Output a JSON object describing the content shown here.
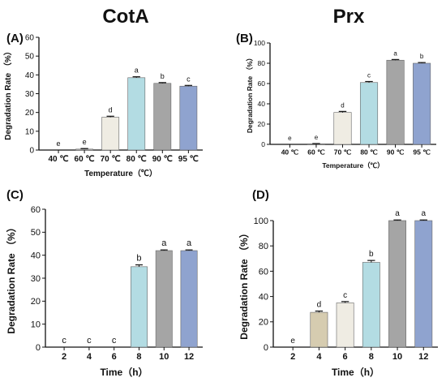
{
  "titles": {
    "left": "CotA",
    "right": "Prx"
  },
  "chart_data": [
    {
      "panel": "(A)",
      "type": "bar",
      "categories": [
        "40 ℃",
        "60 ℃",
        "70 ℃",
        "80 ℃",
        "90 ℃",
        "95 ℃"
      ],
      "values": [
        0,
        0.5,
        17.5,
        38.5,
        35.5,
        34
      ],
      "errors": [
        0,
        0.3,
        0.5,
        0.5,
        0.4,
        0.4
      ],
      "letters": [
        "e",
        "e",
        "d",
        "a",
        "b",
        "c"
      ],
      "colors": [
        "#ffffff",
        "#cccccc",
        "#efece3",
        "#b3dce3",
        "#a5a5a5",
        "#8fa3cf"
      ],
      "xlabel": "Temperature（℃）",
      "ylabel": "Degradation Rate （%）",
      "ylim": [
        0,
        60
      ],
      "yticks": [
        0,
        10,
        20,
        30,
        40,
        50,
        60
      ]
    },
    {
      "panel": "(B)",
      "type": "bar",
      "categories": [
        "40 ℃",
        "60 ℃",
        "70 ℃",
        "80 ℃",
        "90 ℃",
        "95 ℃"
      ],
      "values": [
        0,
        0.5,
        31.5,
        61,
        83,
        80
      ],
      "errors": [
        0,
        0.3,
        1,
        1,
        0.7,
        0.7
      ],
      "letters": [
        "e",
        "e",
        "d",
        "c",
        "a",
        "b"
      ],
      "colors": [
        "#ffffff",
        "#cccccc",
        "#efece3",
        "#b3dce3",
        "#a5a5a5",
        "#8fa3cf"
      ],
      "xlabel": "Temperature（℃）",
      "ylabel": "Degradation Rate （%）",
      "ylim": [
        0,
        100
      ],
      "yticks": [
        0,
        20,
        40,
        60,
        80,
        100
      ]
    },
    {
      "panel": "(C)",
      "type": "bar",
      "categories": [
        "2",
        "4",
        "6",
        "8",
        "10",
        "12"
      ],
      "values": [
        0,
        0,
        0,
        35,
        42,
        42
      ],
      "errors": [
        0,
        0,
        0,
        0.8,
        0.3,
        0.3
      ],
      "letters": [
        "c",
        "c",
        "c",
        "b",
        "a",
        "a"
      ],
      "colors": [
        "#ffffff",
        "#ffffff",
        "#ffffff",
        "#b3dce3",
        "#a5a5a5",
        "#8fa3cf"
      ],
      "xlabel": "Time（h）",
      "ylabel": "Degradation Rate （%）",
      "ylim": [
        0,
        60
      ],
      "yticks": [
        0,
        10,
        20,
        30,
        40,
        50,
        60
      ]
    },
    {
      "panel": "(D)",
      "type": "bar",
      "categories": [
        "2",
        "4",
        "6",
        "8",
        "10",
        "12"
      ],
      "values": [
        0,
        27.5,
        35,
        67,
        100,
        100
      ],
      "errors": [
        0,
        1,
        1,
        1.5,
        0.5,
        0.5
      ],
      "letters": [
        "e",
        "d",
        "c",
        "b",
        "a",
        "a"
      ],
      "colors": [
        "#ffffff",
        "#d6ccb0",
        "#efece3",
        "#b3dce3",
        "#a5a5a5",
        "#8fa3cf"
      ],
      "xlabel": "Time（h）",
      "ylabel": "Degradation Rate （%）",
      "ylim": [
        0,
        100
      ],
      "yticks": [
        0,
        20,
        40,
        60,
        80,
        100
      ]
    }
  ]
}
